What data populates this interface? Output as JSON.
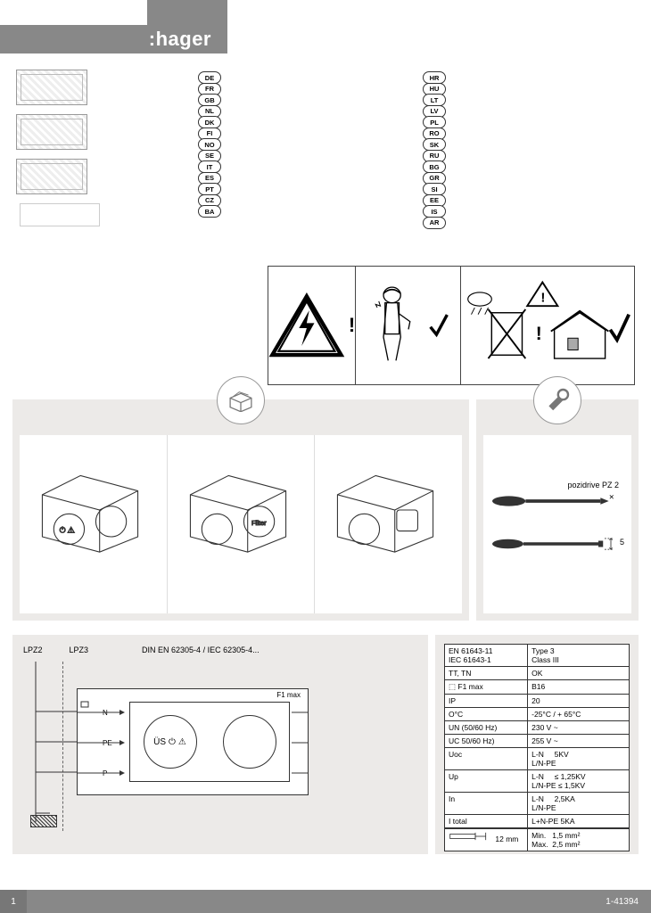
{
  "brand": ":hager",
  "languages_col1": [
    "DE",
    "FR",
    "GB",
    "NL",
    "DK",
    "FI",
    "NO",
    "SE",
    "IT",
    "ES",
    "PT",
    "CZ",
    "BA"
  ],
  "languages_col2": [
    "HR",
    "HU",
    "LT",
    "LV",
    "PL",
    "RO",
    "SK",
    "RU",
    "BG",
    "GR",
    "SI",
    "EE",
    "IS",
    "AR"
  ],
  "tool_label": "pozidrive PZ 2",
  "tool_flat_size": "5",
  "diagram": {
    "zone1": "LPZ2",
    "zone2": "LPZ3",
    "standard": "DIN EN 62305-4 / IEC 62305-4...",
    "terminals": [
      "N",
      "PE",
      "P"
    ],
    "module_label": "ÜS",
    "fuse": "F1 max"
  },
  "spec": {
    "rows": [
      [
        "EN 61643-11\nIEC 61643-1",
        "Type 3\nClass III"
      ],
      [
        "TT, TN",
        "OK"
      ],
      [
        "⬚ F1 max",
        "B16"
      ],
      [
        "IP",
        "20"
      ],
      [
        "O°C",
        "-25°C / + 65°C"
      ],
      [
        "UN (50/60 Hz)",
        "230 V ~"
      ],
      [
        "UC 50/60 Hz)",
        "255 V ~"
      ],
      [
        "Uoc",
        "L-N     5KV\nL/N-PE"
      ],
      [
        "Up",
        "L-N     ≤ 1,25KV\nL/N-PE ≤ 1,5KV"
      ],
      [
        "In",
        "L-N     2,5KA\nL/N-PE"
      ],
      [
        "I total",
        "L+N-PE  5KA"
      ]
    ],
    "strip": "12 mm",
    "wire": "Min.   1,5 mm²\nMax.  2,5 mm²"
  },
  "footer": {
    "page": "1",
    "doc": "1-41394"
  }
}
